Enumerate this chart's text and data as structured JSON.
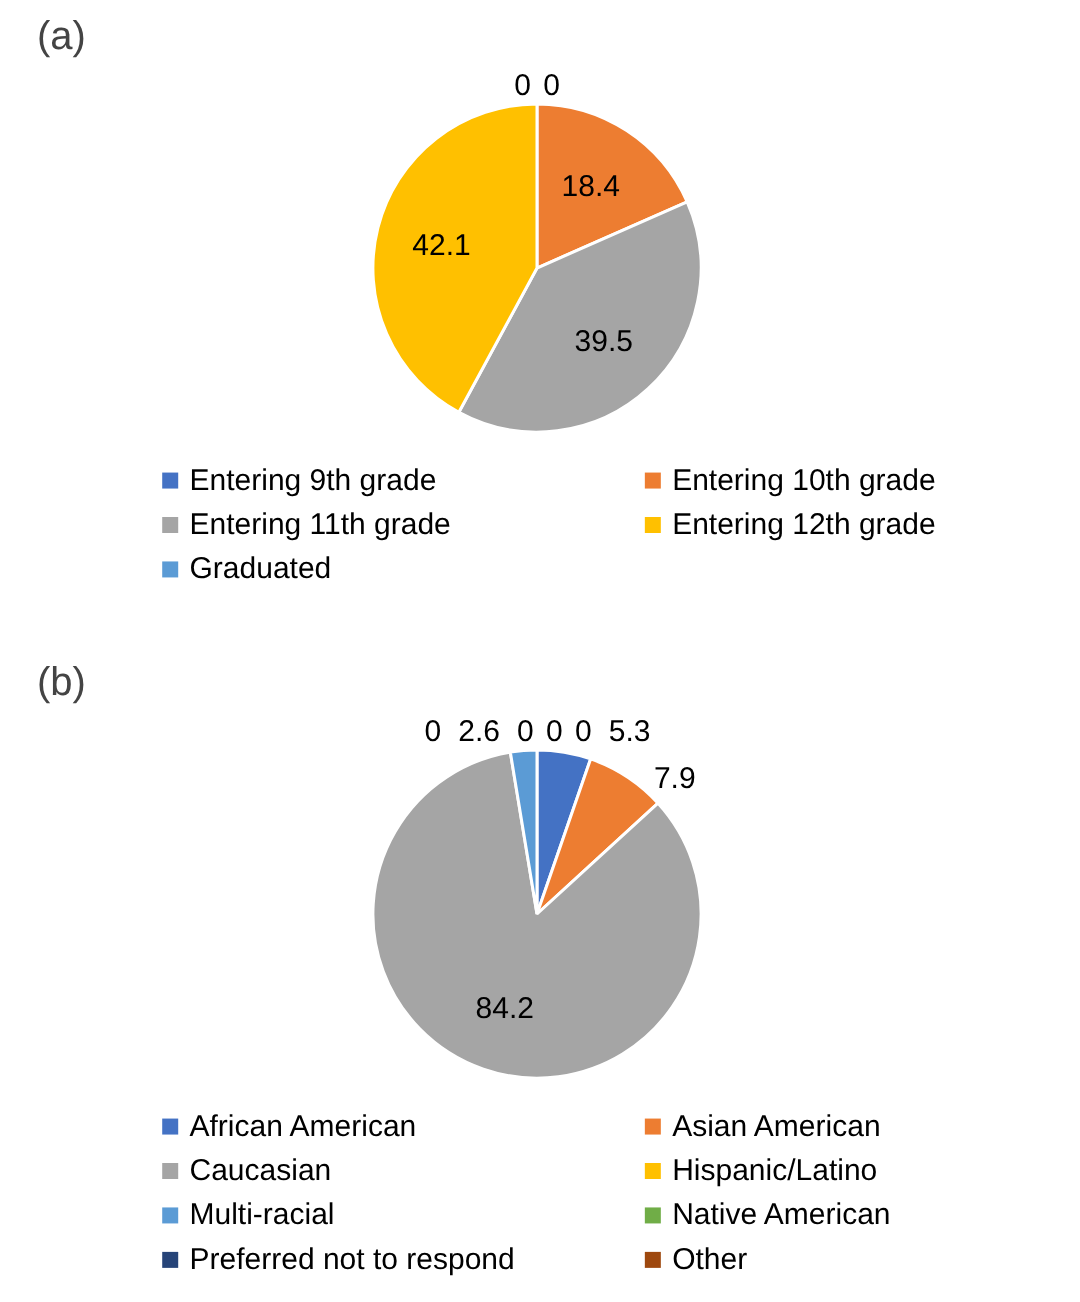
{
  "chart_data": [
    {
      "type": "pie",
      "title": "(a)",
      "categories": [
        "Entering 9th grade",
        "Entering 10th grade",
        "Entering 11th grade",
        "Entering 12th grade",
        "Graduated"
      ],
      "values": [
        0,
        18.4,
        39.5,
        42.1,
        0
      ],
      "colors": [
        "#4472c4",
        "#ed7d31",
        "#a5a5a5",
        "#ffc000",
        "#5b9bd5"
      ],
      "value_labels": [
        "0",
        "18.4",
        "39.5",
        "42.1",
        "0"
      ],
      "legend": "bottom"
    },
    {
      "type": "pie",
      "title": "(b)",
      "categories": [
        "African American",
        "Asian American",
        "Caucasian",
        "Hispanic/Latino",
        "Multi-racial",
        "Native American",
        "Preferred not to respond",
        "Other"
      ],
      "values": [
        5.3,
        7.9,
        84.2,
        0,
        2.6,
        0,
        0,
        0
      ],
      "colors": [
        "#4472c4",
        "#ed7d31",
        "#a5a5a5",
        "#ffc000",
        "#5b9bd5",
        "#70ad47",
        "#264478",
        "#9e480e"
      ],
      "value_labels": [
        "5.3",
        "7.9",
        "84.2",
        "0",
        "2.6",
        "0",
        "0",
        "0"
      ],
      "legend": "bottom"
    }
  ]
}
